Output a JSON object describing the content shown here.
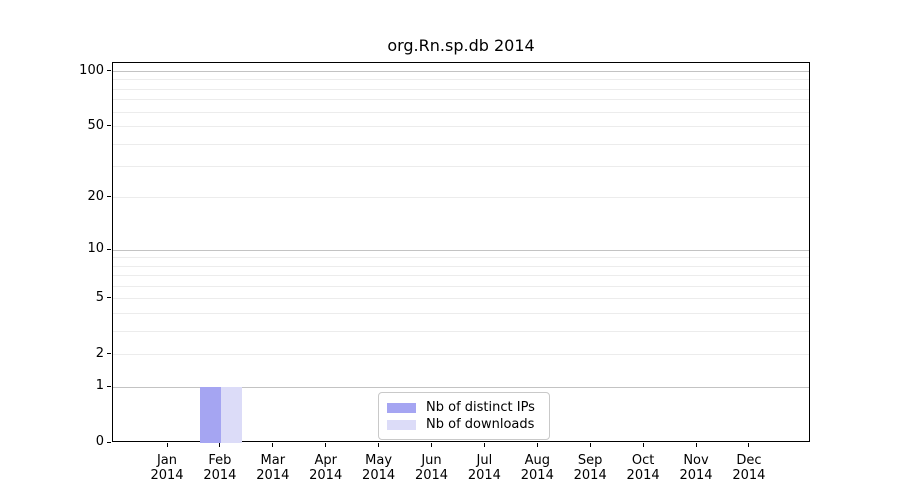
{
  "chart_data": {
    "type": "bar",
    "title": "org.Rn.sp.db 2014",
    "xlabel": "",
    "ylabel": "",
    "categories": [
      "Jan 2014",
      "Feb 2014",
      "Mar 2014",
      "Apr 2014",
      "May 2014",
      "Jun 2014",
      "Jul 2014",
      "Aug 2014",
      "Sep 2014",
      "Oct 2014",
      "Nov 2014",
      "Dec 2014"
    ],
    "series": [
      {
        "name": "Nb of distinct IPs",
        "color": "#a5a5f2",
        "values": [
          0,
          1,
          0,
          0,
          0,
          0,
          0,
          0,
          0,
          0,
          0,
          0
        ]
      },
      {
        "name": "Nb of downloads",
        "color": "#dcdcf8",
        "values": [
          0,
          1,
          0,
          0,
          0,
          0,
          0,
          0,
          0,
          0,
          0,
          0
        ]
      }
    ],
    "yscale": "log1p",
    "ylim": [
      0,
      110
    ],
    "y_tick_values": [
      0,
      1,
      2,
      5,
      10,
      20,
      50,
      100
    ],
    "y_tick_labels": [
      "0",
      "1",
      "2",
      "5",
      "10",
      "20",
      "50",
      "100"
    ],
    "y_grid_major_values": [
      1,
      10,
      100
    ],
    "y_grid_minor_values": [
      2,
      3,
      4,
      5,
      6,
      7,
      8,
      9,
      20,
      30,
      40,
      50,
      60,
      70,
      80,
      90
    ],
    "grid": "on",
    "legend_position": "lower center inside axes"
  }
}
